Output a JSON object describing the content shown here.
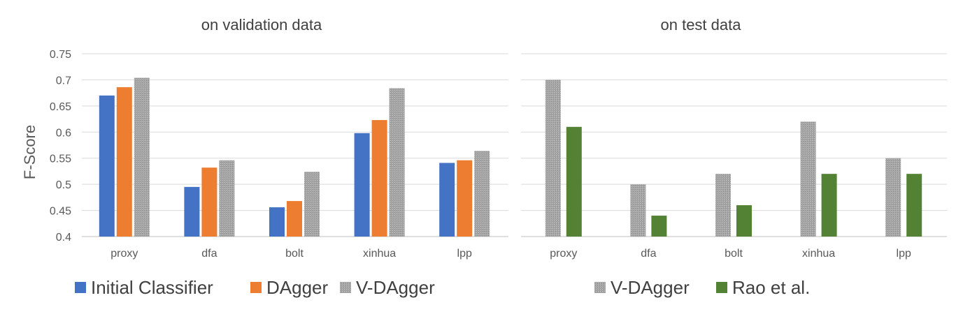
{
  "figure": {
    "ylabel": "F-Score"
  },
  "chart_data": [
    {
      "type": "bar",
      "title": "on validation data",
      "xlabel": "",
      "ylabel": "F-Score",
      "ylim": [
        0.4,
        0.75
      ],
      "yticks": [
        "0.4",
        "0.45",
        "0.5",
        "0.55",
        "0.6",
        "0.65",
        "0.7",
        "0.75"
      ],
      "grid": true,
      "legend": "bottom",
      "categories": [
        "proxy",
        "dfa",
        "bolt",
        "xinhua",
        "lpp"
      ],
      "series": [
        {
          "name": "Initial Classifier",
          "color": "#4472C4",
          "pattern": "solid",
          "values": [
            0.67,
            0.495,
            0.456,
            0.598,
            0.541
          ]
        },
        {
          "name": "DAgger",
          "color": "#ED7D31",
          "pattern": "solid",
          "values": [
            0.686,
            0.532,
            0.468,
            0.623,
            0.546
          ]
        },
        {
          "name": "V-DAgger",
          "color": "#A5A5A5",
          "pattern": "dotted",
          "values": [
            0.704,
            0.546,
            0.524,
            0.684,
            0.564
          ]
        }
      ]
    },
    {
      "type": "bar",
      "title": "on test data",
      "xlabel": "",
      "ylabel": "",
      "ylim": [
        0.4,
        0.75
      ],
      "grid": true,
      "legend": "bottom",
      "categories": [
        "proxy",
        "dfa",
        "bolt",
        "xinhua",
        "lpp"
      ],
      "series": [
        {
          "name": "V-DAgger",
          "color": "#A5A5A5",
          "pattern": "dotted",
          "values": [
            0.7,
            0.5,
            0.52,
            0.62,
            0.55
          ]
        },
        {
          "name": "Rao et al.",
          "color": "#548235",
          "pattern": "solid",
          "values": [
            0.61,
            0.44,
            0.46,
            0.52,
            0.52
          ]
        }
      ]
    }
  ]
}
